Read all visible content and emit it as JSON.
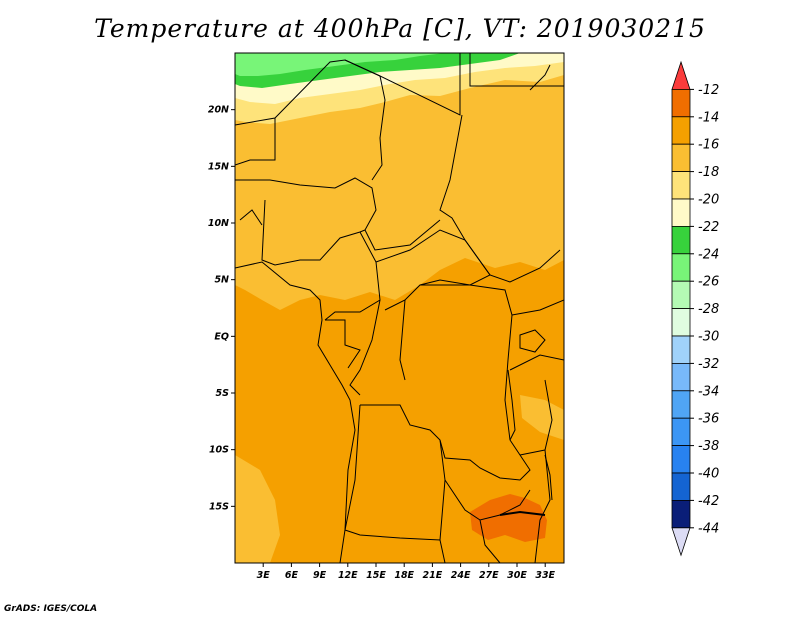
{
  "title": "Temperature at 400hPa [C], VT: 2019030215",
  "credit": "GrADS: IGES/COLA",
  "map": {
    "region": "Central and southern Africa",
    "lon_labels": [
      "3E",
      "6E",
      "9E",
      "12E",
      "15E",
      "18E",
      "21E",
      "24E",
      "27E",
      "30E",
      "33E"
    ],
    "lat_labels": [
      "20N",
      "15N",
      "10N",
      "5N",
      "EQ",
      "5S",
      "10S",
      "15S"
    ],
    "lon_values": [
      3,
      6,
      9,
      12,
      15,
      18,
      21,
      24,
      27,
      30,
      33
    ],
    "lat_values": [
      20,
      15,
      10,
      5,
      0,
      -5,
      -10,
      -15
    ],
    "lon_range": [
      0,
      35
    ],
    "lat_range": [
      -20,
      25
    ],
    "units": "C"
  },
  "colorbar": {
    "labels": [
      "-12",
      "-14",
      "-16",
      "-18",
      "-20",
      "-22",
      "-24",
      "-26",
      "-28",
      "-30",
      "-32",
      "-34",
      "-36",
      "-38",
      "-40",
      "-42",
      "-44"
    ],
    "colors": [
      "#fa3c3c",
      "#f06e00",
      "#f5a000",
      "#fabe32",
      "#fee37a",
      "#fffac8",
      "#37d23c",
      "#78f578",
      "#b4fab4",
      "#e0fde0",
      "#a0d2fa",
      "#78b9fa",
      "#50a5f5",
      "#3c96f5",
      "#2882f0",
      "#1464d2",
      "#0a1e78",
      "#dcdcf5"
    ]
  }
}
